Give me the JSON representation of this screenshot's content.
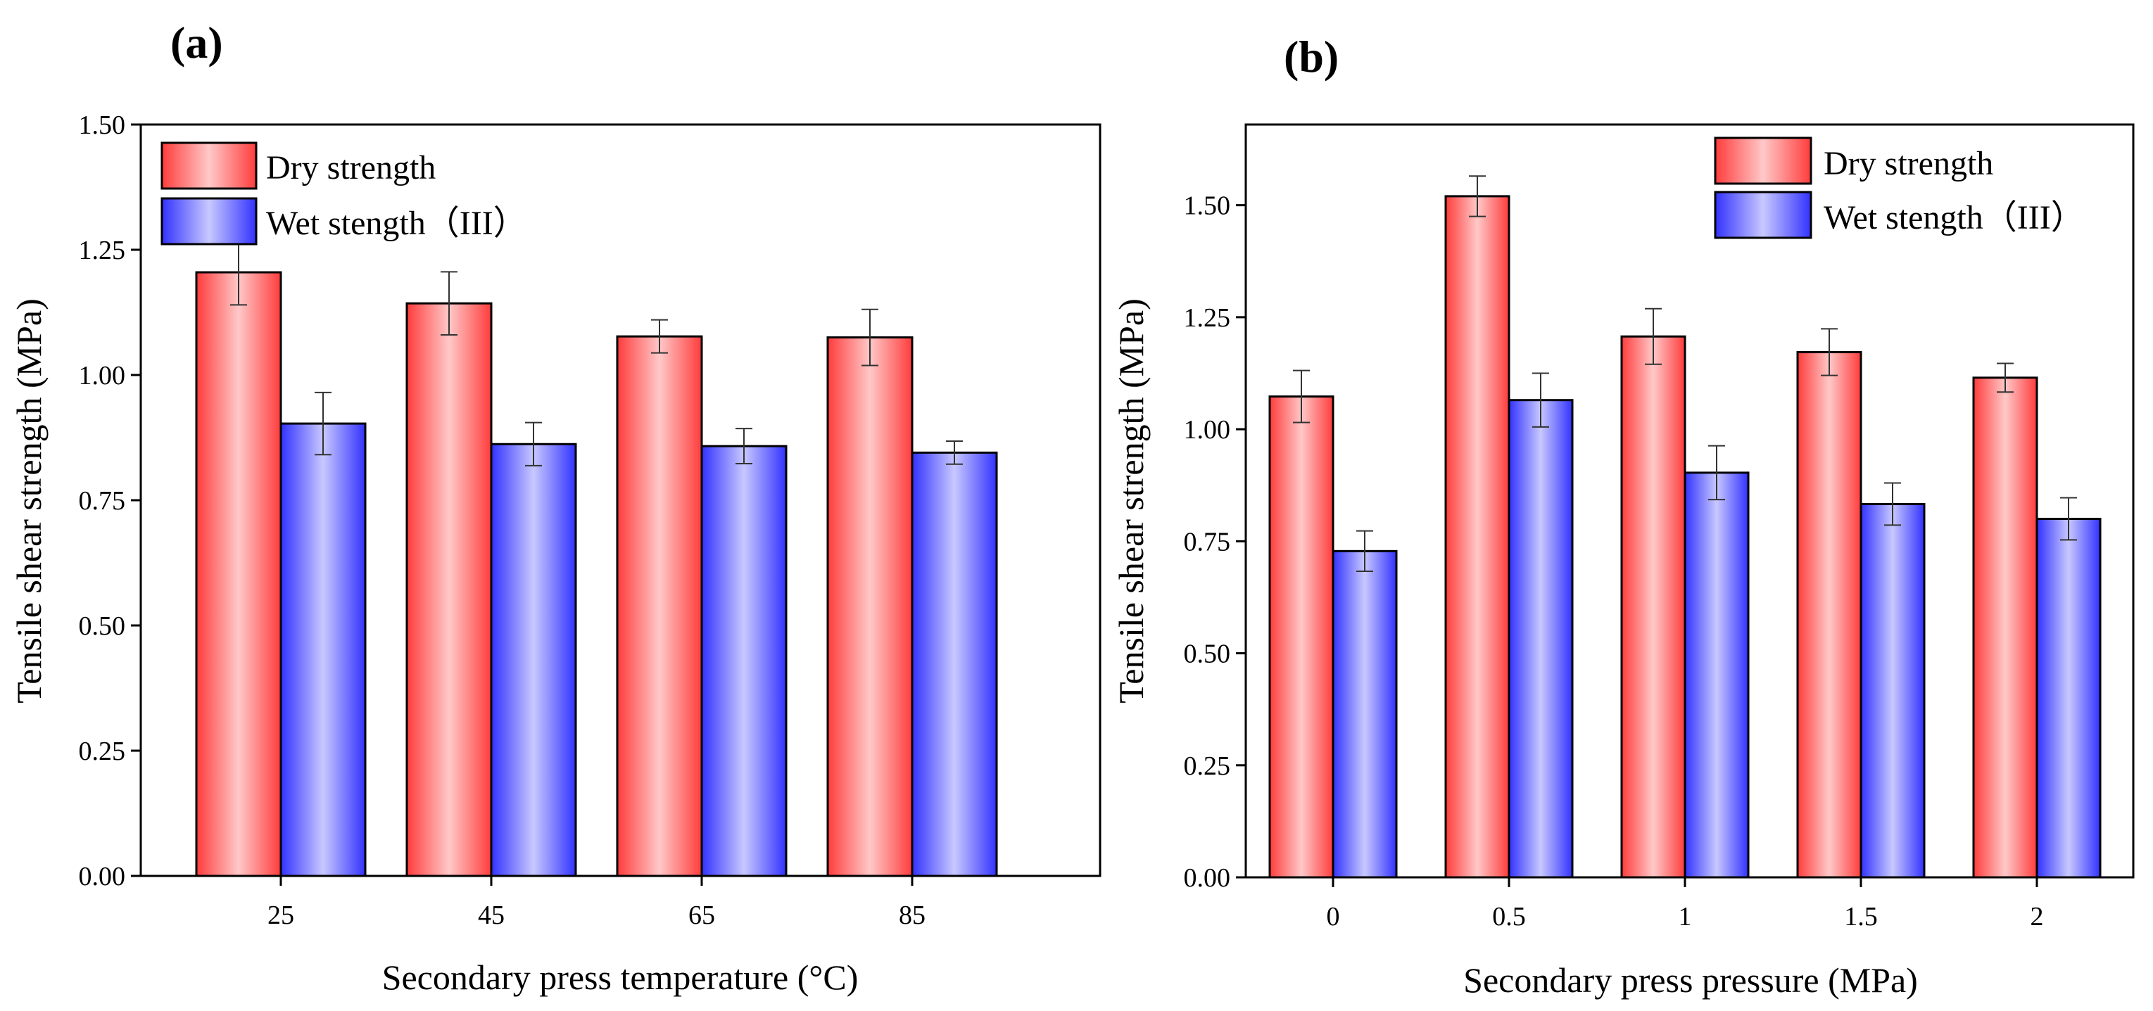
{
  "colors": {
    "dry_edge": "#ff3c3c",
    "dry_center": "#ffc8c8",
    "wet_edge": "#3232ff",
    "wet_center": "#c8c8ff"
  },
  "chart_data": [
    {
      "type": "bar",
      "panel_label": "(a)",
      "xlabel": "Secondary press temperature (°C)",
      "ylabel": "Tensile shear strength (MPa)",
      "categories": [
        "25",
        "45",
        "65",
        "85"
      ],
      "ylim": [
        0,
        1.5
      ],
      "yticks": [
        0.0,
        0.25,
        0.5,
        0.75,
        1.0,
        1.25,
        1.5
      ],
      "legend_position": "top-left",
      "series": [
        {
          "name": "Dry strength",
          "values": [
            1.205,
            1.143,
            1.077,
            1.075
          ],
          "errors": [
            0.065,
            0.063,
            0.033,
            0.056
          ]
        },
        {
          "name": "Wet stength（III）",
          "values": [
            0.903,
            0.862,
            0.858,
            0.845
          ],
          "errors": [
            0.062,
            0.043,
            0.035,
            0.023
          ]
        }
      ]
    },
    {
      "type": "bar",
      "panel_label": "(b)",
      "xlabel": "Secondary press pressure (MPa)",
      "ylabel": "Tensile shear strength (MPa)",
      "categories": [
        "0",
        "0.5",
        "1",
        "1.5",
        "2"
      ],
      "ylim": [
        0,
        1.68
      ],
      "yticks": [
        0.0,
        0.25,
        0.5,
        0.75,
        1.0,
        1.25,
        1.5
      ],
      "legend_position": "top-right",
      "series": [
        {
          "name": "Dry strength",
          "values": [
            1.073,
            1.52,
            1.207,
            1.172,
            1.115
          ],
          "errors": [
            0.058,
            0.045,
            0.062,
            0.052,
            0.032
          ]
        },
        {
          "name": "Wet stength（III）",
          "values": [
            0.728,
            1.065,
            0.903,
            0.833,
            0.8
          ],
          "errors": [
            0.045,
            0.06,
            0.06,
            0.047,
            0.047
          ]
        }
      ]
    }
  ]
}
